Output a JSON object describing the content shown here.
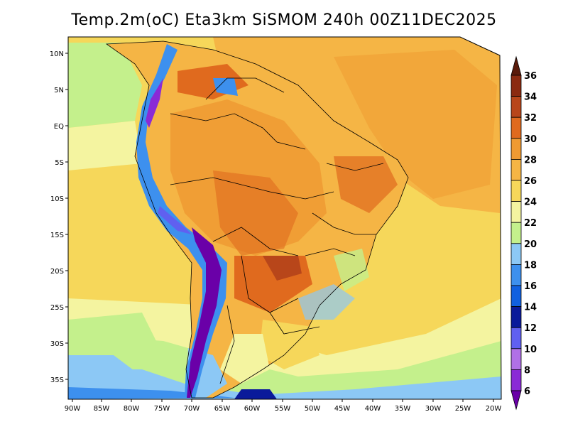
{
  "title": "Temp.2m(oC) Eta3km SiSMOM 240h 00Z11DEC2025",
  "map": {
    "variable": "2 m air temperature",
    "units": "oC",
    "region": "South America"
  },
  "lat_labels": [
    "10N",
    "5N",
    "EQ",
    "5S",
    "10S",
    "15S",
    "20S",
    "25S",
    "30S",
    "35S"
  ],
  "lon_labels": [
    "90W",
    "85W",
    "80W",
    "75W",
    "70W",
    "65W",
    "60W",
    "55W",
    "50W",
    "45W",
    "40W",
    "35W",
    "30W",
    "25W",
    "20W"
  ],
  "colorbar": {
    "levels": [
      "6",
      "8",
      "10",
      "12",
      "14",
      "16",
      "18",
      "20",
      "22",
      "24",
      "26",
      "28",
      "30",
      "32",
      "34",
      "36"
    ],
    "colors": [
      "#6a00a8",
      "#8a2bd6",
      "#b070e6",
      "#6060f0",
      "#0a1a9a",
      "#1060e0",
      "#3d90ee",
      "#8cc8f5",
      "#c4f08c",
      "#f4f4a0",
      "#f6d75a",
      "#f5b545",
      "#ef9a32",
      "#e06a1e",
      "#b8461a",
      "#8b2a10",
      "#5a1a0a"
    ]
  }
}
